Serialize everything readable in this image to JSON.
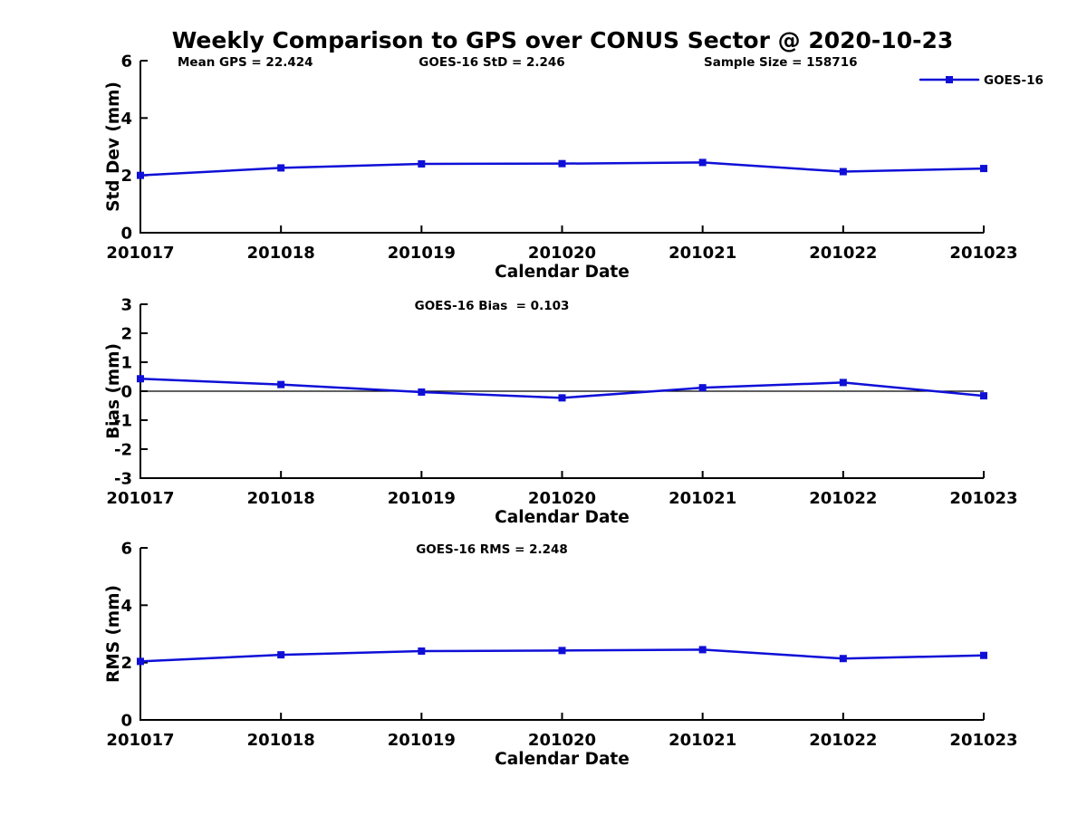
{
  "figure": {
    "title": "Weekly Comparison to GPS over CONUS Sector @ 2020-10-23",
    "background_color": "#ffffff",
    "text_color": "#000000",
    "series_color": "#0f0fd8"
  },
  "chart_data": [
    {
      "type": "line",
      "ylabel": "Std Dev (mm)",
      "xlabel": "Calendar Date",
      "ylim": [
        0,
        6
      ],
      "yticks": [
        0,
        2,
        4,
        6
      ],
      "grid": false,
      "categories": [
        "201017",
        "201018",
        "201019",
        "201020",
        "201021",
        "201022",
        "201023"
      ],
      "series": [
        {
          "name": "GOES-16",
          "marker": "square",
          "values": [
            2.0,
            2.26,
            2.4,
            2.41,
            2.45,
            2.13,
            2.24
          ]
        }
      ],
      "annotations": [
        {
          "text": "Mean GPS = 22.424",
          "position": "left"
        },
        {
          "text": "GOES-16 StD = 2.246",
          "position": "center"
        },
        {
          "text": "Sample Size = 158716",
          "position": "right"
        }
      ],
      "legend": {
        "label": "GOES-16",
        "position": "top-right"
      },
      "zero_line": false
    },
    {
      "type": "line",
      "ylabel": "Bias (mm)",
      "xlabel": "Calendar Date",
      "ylim": [
        -3,
        3
      ],
      "yticks": [
        -3,
        -2,
        -1,
        0,
        1,
        2,
        3
      ],
      "grid": false,
      "categories": [
        "201017",
        "201018",
        "201019",
        "201020",
        "201021",
        "201022",
        "201023"
      ],
      "series": [
        {
          "name": "GOES-16",
          "marker": "square",
          "values": [
            0.43,
            0.23,
            -0.03,
            -0.23,
            0.12,
            0.3,
            -0.16
          ]
        }
      ],
      "annotations": [
        {
          "text": "GOES-16 Bias  = 0.103",
          "position": "center"
        }
      ],
      "legend": null,
      "zero_line": true
    },
    {
      "type": "line",
      "ylabel": "RMS (mm)",
      "xlabel": "Calendar Date",
      "ylim": [
        0,
        6
      ],
      "yticks": [
        0,
        2,
        4,
        6
      ],
      "grid": false,
      "categories": [
        "201017",
        "201018",
        "201019",
        "201020",
        "201021",
        "201022",
        "201023"
      ],
      "series": [
        {
          "name": "GOES-16",
          "marker": "square",
          "values": [
            2.04,
            2.27,
            2.4,
            2.42,
            2.45,
            2.14,
            2.25
          ]
        }
      ],
      "annotations": [
        {
          "text": "GOES-16 RMS = 2.248",
          "position": "center"
        }
      ],
      "legend": null,
      "zero_line": false
    }
  ]
}
